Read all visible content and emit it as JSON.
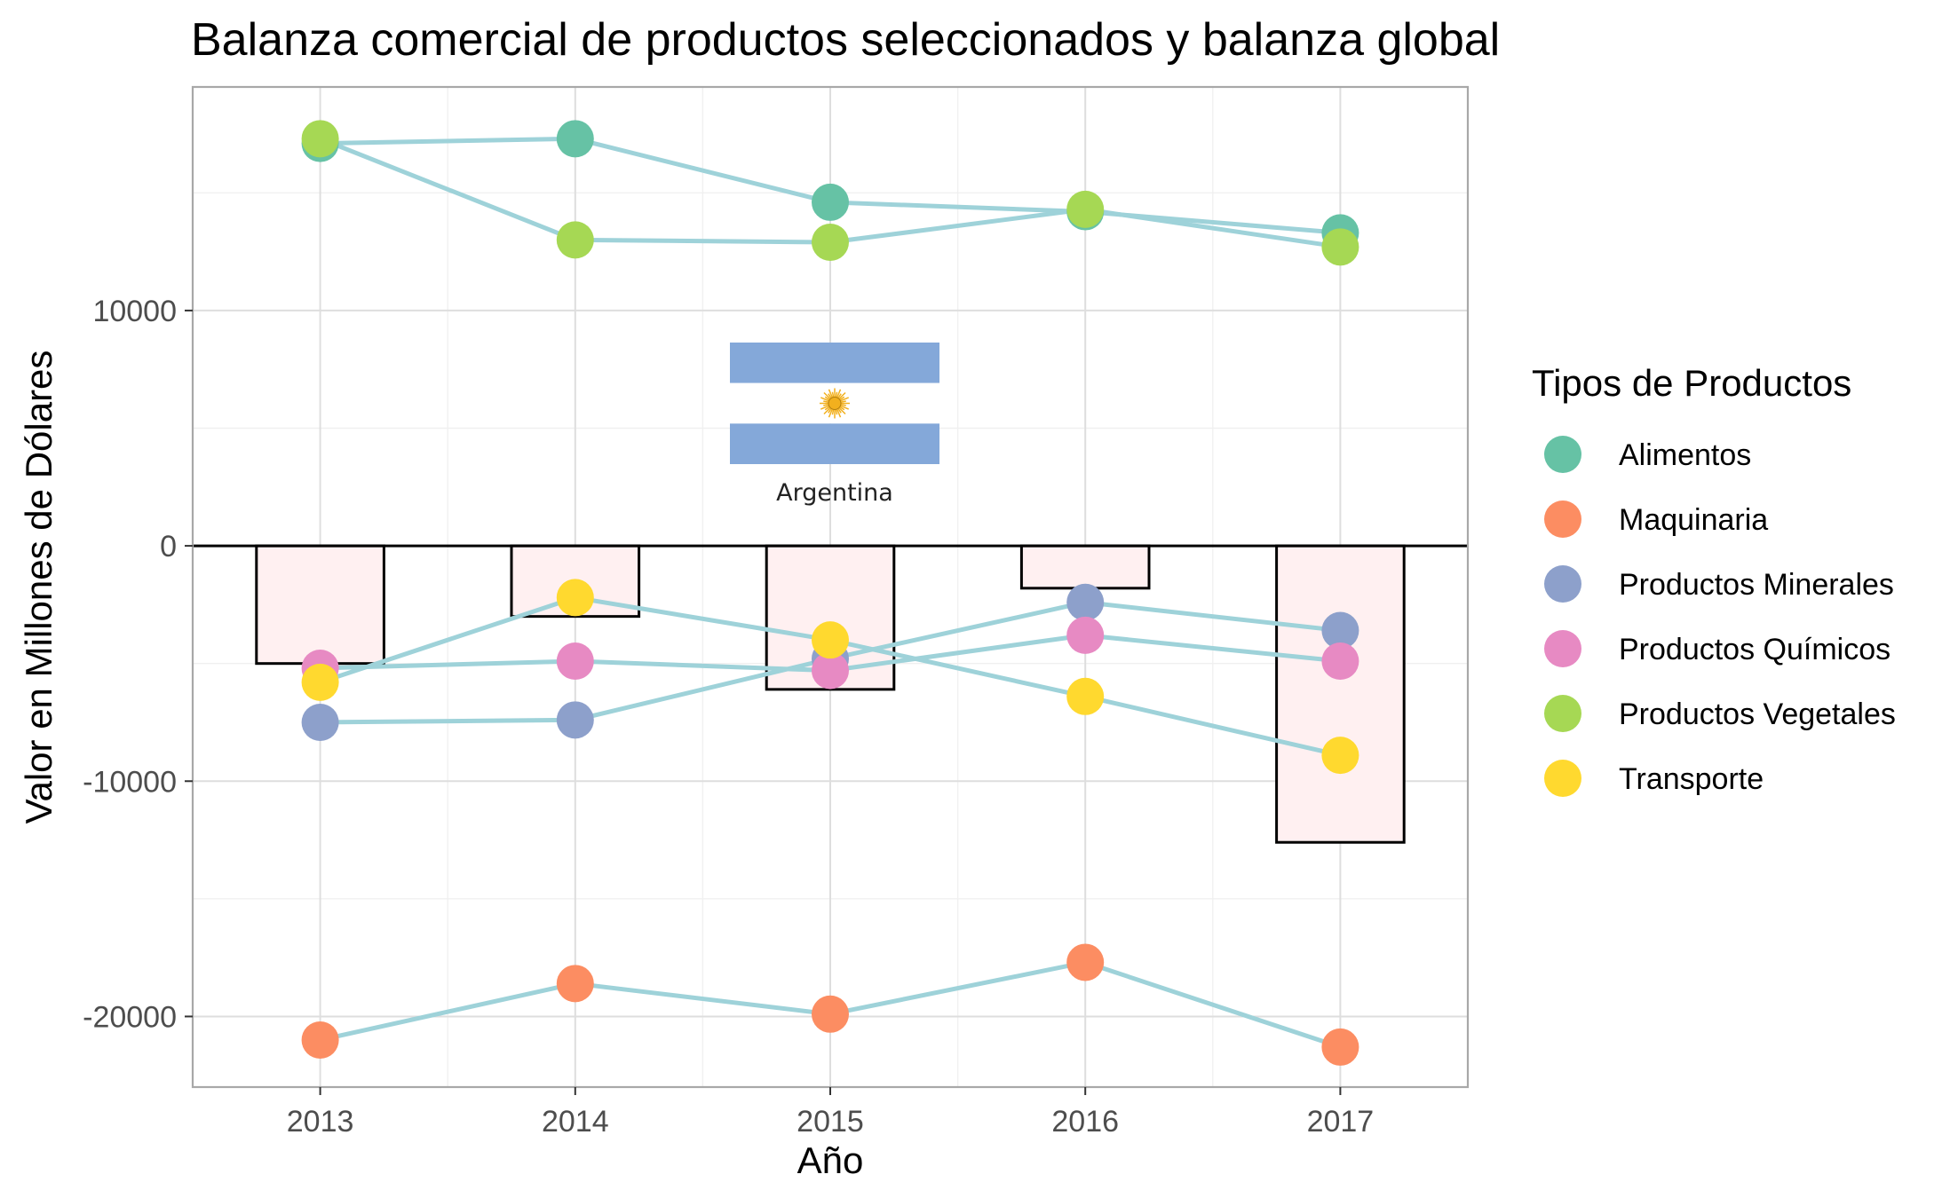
{
  "chart_data": {
    "type": "line",
    "title": "Balanza comercial de productos seleccionados y balanza global",
    "xlabel": "Año",
    "ylabel": "Valor en Millones de Dólares",
    "x": [
      2013,
      2014,
      2015,
      2016,
      2017
    ],
    "x_tick_labels": [
      "2013",
      "2014",
      "2015",
      "2016",
      "2017"
    ],
    "xlim": [
      2012.5,
      2017.5
    ],
    "ylim": [
      -23000,
      19500
    ],
    "y_ticks": [
      -20000,
      -10000,
      0,
      10000
    ],
    "y_tick_labels": [
      "-20000",
      "-10000",
      "0",
      "10000"
    ],
    "grid": true,
    "legend": {
      "title": "Tipos de Productos",
      "position": "right"
    },
    "line_color": "#9ed2d9",
    "bars": {
      "description": "balanza global",
      "values": [
        -5000,
        -3000,
        -6100,
        -1800,
        -12600
      ],
      "fill": "#fff0f1",
      "stroke": "#000000"
    },
    "series": [
      {
        "name": "Alimentos",
        "color": "#66c2a5",
        "values": [
          17100,
          17300,
          14600,
          14200,
          13300
        ]
      },
      {
        "name": "Maquinaria",
        "color": "#fc8d62",
        "values": [
          -21000,
          -18600,
          -19900,
          -17700,
          -21300
        ]
      },
      {
        "name": "Productos Minerales",
        "color": "#8da0cb",
        "values": [
          -7500,
          -7400,
          -4800,
          -2400,
          -3600
        ]
      },
      {
        "name": "Productos Químicos",
        "color": "#e78ac3",
        "values": [
          -5200,
          -4900,
          -5300,
          -3800,
          -4900
        ]
      },
      {
        "name": "Productos Vegetales",
        "color": "#a6d854",
        "values": [
          17300,
          13000,
          12900,
          14300,
          12700
        ]
      },
      {
        "name": "Transporte",
        "color": "#ffd92f",
        "values": [
          -5800,
          -2200,
          -4000,
          -6400,
          -8900
        ]
      }
    ],
    "annotation": {
      "flag": "argentina-flag",
      "label": "Argentina",
      "colors": {
        "stripe": "#84a8d9",
        "center": "#ffffff",
        "sun": "#f2b01e"
      }
    }
  }
}
